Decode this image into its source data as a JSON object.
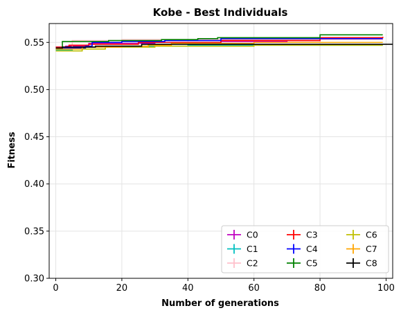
{
  "chart_data": {
    "type": "line",
    "title": "Kobe - Best Individuals",
    "xlabel": "Number of generations",
    "ylabel": "Fitness",
    "xlim": [
      -2,
      102
    ],
    "ylim": [
      0.3,
      0.57
    ],
    "xticks": [
      0,
      20,
      40,
      60,
      80,
      100
    ],
    "yticks": [
      0.3,
      0.35,
      0.4,
      0.45,
      0.5,
      0.55
    ],
    "xtick_labels": [
      "0",
      "20",
      "40",
      "60",
      "80",
      "100"
    ],
    "ytick_labels": [
      "0.30",
      "0.35",
      "0.40",
      "0.45",
      "0.50",
      "0.55"
    ],
    "grid": true,
    "legend_position": "lower-right",
    "legend_columns": 3,
    "series": [
      {
        "name": "C0",
        "color": "#bf00bf",
        "steps": [
          [
            0,
            0.545
          ],
          [
            3,
            0.546
          ],
          [
            10,
            0.549
          ],
          [
            30,
            0.55
          ],
          [
            50,
            0.551
          ],
          [
            70,
            0.552
          ],
          [
            80,
            0.553
          ],
          [
            99,
            0.553
          ]
        ]
      },
      {
        "name": "C1",
        "color": "#00bfbf",
        "steps": [
          [
            0,
            0.542
          ],
          [
            5,
            0.545
          ],
          [
            15,
            0.546
          ],
          [
            40,
            0.547
          ],
          [
            60,
            0.547
          ],
          [
            99,
            0.547
          ]
        ]
      },
      {
        "name": "C2",
        "color": "#ffc0cb",
        "steps": [
          [
            0,
            0.543
          ],
          [
            5,
            0.552
          ],
          [
            20,
            0.553
          ],
          [
            99,
            0.553
          ]
        ]
      },
      {
        "name": "C3",
        "color": "#ff0000",
        "steps": [
          [
            0,
            0.545
          ],
          [
            4,
            0.547
          ],
          [
            10,
            0.548
          ],
          [
            25,
            0.55
          ],
          [
            50,
            0.552
          ],
          [
            80,
            0.555
          ],
          [
            99,
            0.556
          ]
        ]
      },
      {
        "name": "C4",
        "color": "#0000ff",
        "steps": [
          [
            0,
            0.544
          ],
          [
            9,
            0.546
          ],
          [
            11,
            0.55
          ],
          [
            20,
            0.551
          ],
          [
            33,
            0.552
          ],
          [
            50,
            0.554
          ],
          [
            99,
            0.554
          ]
        ]
      },
      {
        "name": "C5",
        "color": "#008000",
        "steps": [
          [
            0,
            0.543
          ],
          [
            2,
            0.551
          ],
          [
            16,
            0.552
          ],
          [
            32,
            0.553
          ],
          [
            43,
            0.554
          ],
          [
            49,
            0.555
          ],
          [
            80,
            0.558
          ],
          [
            99,
            0.558
          ]
        ]
      },
      {
        "name": "C6",
        "color": "#bfbf00",
        "steps": [
          [
            0,
            0.541
          ],
          [
            8,
            0.543
          ],
          [
            15,
            0.545
          ],
          [
            30,
            0.546
          ],
          [
            60,
            0.547
          ],
          [
            99,
            0.547
          ]
        ]
      },
      {
        "name": "C7",
        "color": "#ffa500",
        "steps": [
          [
            0,
            0.543
          ],
          [
            8,
            0.545
          ],
          [
            20,
            0.546
          ],
          [
            28,
            0.547
          ],
          [
            35,
            0.549
          ],
          [
            60,
            0.55
          ],
          [
            99,
            0.55
          ]
        ]
      },
      {
        "name": "C8",
        "color": "#000000",
        "steps": [
          [
            0,
            0.544
          ],
          [
            2,
            0.545
          ],
          [
            12,
            0.546
          ],
          [
            26,
            0.548
          ],
          [
            99,
            0.548
          ]
        ],
        "extend_to_edge": true
      }
    ]
  }
}
